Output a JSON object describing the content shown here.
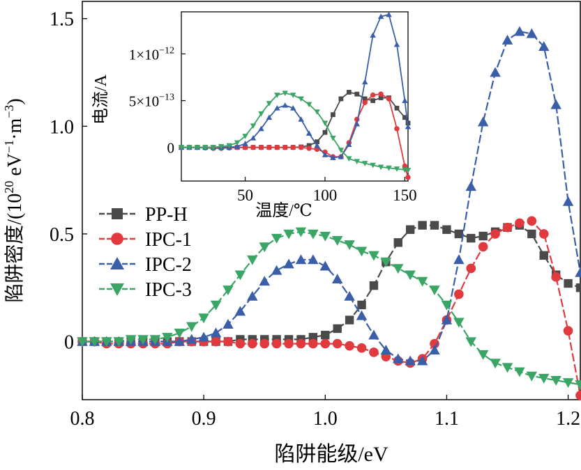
{
  "chart_data": {
    "type": "line",
    "main": {
      "xlabel": "陷阱能级/eV",
      "ylabel_prefix": "陷阱密度/(10",
      "ylabel_exp1": "20",
      "ylabel_mid": " eV",
      "ylabel_exp2": "−1",
      "ylabel_mid2": "·m",
      "ylabel_exp3": "−3",
      "ylabel_suffix": ")",
      "xlim": [
        0.8,
        1.21
      ],
      "ylim": [
        -0.27,
        1.58
      ],
      "xticks": [
        0.8,
        0.9,
        1.0,
        1.1,
        1.2
      ],
      "xtick_labels": [
        "0.8",
        "0.9",
        "1.0",
        "1.1",
        "1.2"
      ],
      "yticks": [
        0,
        0.5,
        1.0,
        1.5
      ],
      "ytick_labels": [
        "0",
        "0.5",
        "1.0",
        "1.5"
      ],
      "legend_position": "left-middle",
      "x": [
        0.8,
        0.81,
        0.82,
        0.83,
        0.84,
        0.85,
        0.86,
        0.87,
        0.88,
        0.89,
        0.9,
        0.91,
        0.92,
        0.93,
        0.94,
        0.95,
        0.96,
        0.97,
        0.98,
        0.99,
        1.0,
        1.01,
        1.02,
        1.03,
        1.04,
        1.05,
        1.06,
        1.07,
        1.08,
        1.09,
        1.1,
        1.11,
        1.12,
        1.13,
        1.14,
        1.15,
        1.16,
        1.17,
        1.18,
        1.19,
        1.2,
        1.21
      ],
      "series": [
        {
          "name": "PP-H",
          "color": "#4a4a4a",
          "marker": "square",
          "values": [
            0.0,
            0.0,
            0.0,
            0.0,
            0.0,
            0.0,
            0.0,
            0.0,
            0.0,
            0.0,
            0.0,
            0.0,
            0.0,
            0.01,
            0.01,
            0.01,
            0.01,
            0.01,
            0.01,
            0.02,
            0.03,
            0.06,
            0.1,
            0.17,
            0.26,
            0.37,
            0.46,
            0.52,
            0.54,
            0.54,
            0.52,
            0.5,
            0.48,
            0.49,
            0.51,
            0.53,
            0.54,
            0.5,
            0.4,
            0.31,
            0.27,
            0.25
          ]
        },
        {
          "name": "IPC-1",
          "color": "#e0393e",
          "marker": "circle",
          "values": [
            0.0,
            0.0,
            -0.01,
            -0.01,
            -0.01,
            -0.01,
            -0.01,
            -0.01,
            0.0,
            0.0,
            0.0,
            0.0,
            0.0,
            -0.01,
            -0.01,
            -0.01,
            -0.01,
            -0.01,
            -0.01,
            -0.01,
            -0.01,
            -0.01,
            -0.02,
            -0.03,
            -0.05,
            -0.07,
            -0.09,
            -0.1,
            -0.08,
            -0.01,
            0.1,
            0.22,
            0.34,
            0.44,
            0.5,
            0.53,
            0.55,
            0.56,
            0.5,
            0.3,
            0.05,
            -0.25
          ]
        },
        {
          "name": "IPC-2",
          "color": "#3a5fa8",
          "marker": "triangle-up",
          "values": [
            0.0,
            0.0,
            0.0,
            0.0,
            0.0,
            0.0,
            0.0,
            0.0,
            0.0,
            0.01,
            0.02,
            0.04,
            0.08,
            0.14,
            0.21,
            0.28,
            0.33,
            0.36,
            0.38,
            0.38,
            0.35,
            0.29,
            0.21,
            0.12,
            0.03,
            -0.04,
            -0.08,
            -0.09,
            -0.09,
            -0.04,
            0.1,
            0.38,
            0.72,
            1.02,
            1.25,
            1.4,
            1.44,
            1.43,
            1.37,
            1.1,
            0.65,
            0.32
          ]
        },
        {
          "name": "IPC-3",
          "color": "#3aa564",
          "marker": "triangle-down",
          "values": [
            0.0,
            0.0,
            0.0,
            0.0,
            0.01,
            0.01,
            0.01,
            0.02,
            0.04,
            0.07,
            0.11,
            0.17,
            0.24,
            0.31,
            0.38,
            0.44,
            0.48,
            0.5,
            0.51,
            0.5,
            0.49,
            0.47,
            0.45,
            0.42,
            0.4,
            0.37,
            0.34,
            0.31,
            0.28,
            0.24,
            0.17,
            0.09,
            0.0,
            -0.06,
            -0.1,
            -0.12,
            -0.14,
            -0.16,
            -0.17,
            -0.18,
            -0.19,
            -0.2
          ]
        }
      ]
    },
    "inset": {
      "xlabel": "温度/℃",
      "ylabel": "电流/A",
      "xlim": [
        10,
        152
      ],
      "ylim": [
        -3.6e-13,
        1.45e-12
      ],
      "xticks": [
        50,
        100,
        150
      ],
      "xtick_labels": [
        "50",
        "100",
        "150"
      ],
      "yticks": [
        0,
        5e-13,
        1e-12
      ],
      "ytick_labels": [
        {
          "mant": "0",
          "exp": ""
        },
        {
          "mant": "5×10",
          "exp": "−13"
        },
        {
          "mant": "1×10",
          "exp": "−12"
        }
      ],
      "x": [
        10,
        15,
        20,
        25,
        30,
        35,
        40,
        45,
        50,
        55,
        60,
        65,
        70,
        75,
        80,
        85,
        90,
        95,
        100,
        105,
        110,
        115,
        120,
        125,
        130,
        135,
        140,
        145,
        150,
        152
      ],
      "series": [
        {
          "name": "PP-H",
          "color": "#4a4a4a",
          "marker": "square",
          "values": [
            0,
            0,
            0,
            0,
            0,
            0,
            0,
            0,
            0,
            0,
            0,
            0,
            0,
            0,
            0,
            5e-15,
            2e-14,
            6e-14,
            1.6e-13,
            3.5e-13,
            5.2e-13,
            5.9e-13,
            5.7e-13,
            5.2e-13,
            5e-13,
            5.3e-13,
            5.3e-13,
            4.2e-13,
            3.2e-13,
            2.6e-13
          ]
        },
        {
          "name": "IPC-1",
          "color": "#e0393e",
          "marker": "circle",
          "values": [
            0,
            0,
            0,
            -5e-15,
            -1e-14,
            -1e-14,
            -5e-15,
            0,
            0,
            0,
            0,
            0,
            0,
            0,
            0,
            0,
            -1e-14,
            -2e-14,
            -5e-14,
            -1e-13,
            -1e-13,
            5e-14,
            3e-13,
            4.8e-13,
            5.6e-13,
            5.7e-13,
            5.2e-13,
            2e-13,
            -2e-13,
            -3.2e-13
          ]
        },
        {
          "name": "IPC-2",
          "color": "#3a5fa8",
          "marker": "triangle-up",
          "values": [
            0,
            0,
            0,
            0,
            0,
            0,
            0,
            1e-14,
            4e-14,
            1e-13,
            2e-13,
            3.2e-13,
            4.2e-13,
            4.5e-13,
            4.2e-13,
            3e-13,
            1.5e-13,
            2e-14,
            -8e-14,
            -1.1e-13,
            -1e-13,
            3e-14,
            2.5e-13,
            7e-13,
            1.2e-12,
            1.4e-12,
            1.42e-12,
            1.1e-12,
            5e-13,
            2.2e-13
          ]
        },
        {
          "name": "IPC-3",
          "color": "#3aa564",
          "marker": "triangle-down",
          "values": [
            0,
            0,
            0,
            0,
            0,
            1e-14,
            2e-14,
            5e-14,
            1.2e-13,
            2.3e-13,
            3.6e-13,
            4.7e-13,
            5.6e-13,
            5.8e-13,
            5.6e-13,
            5.2e-13,
            4.6e-13,
            3.8e-13,
            2.6e-13,
            1e-13,
            -3e-14,
            -1.2e-13,
            -1.5e-13,
            -1.7e-13,
            -1.9e-13,
            -2.1e-13,
            -2.2e-13,
            -2.3e-13,
            -2.4e-13,
            -2.45e-13
          ]
        }
      ]
    }
  }
}
